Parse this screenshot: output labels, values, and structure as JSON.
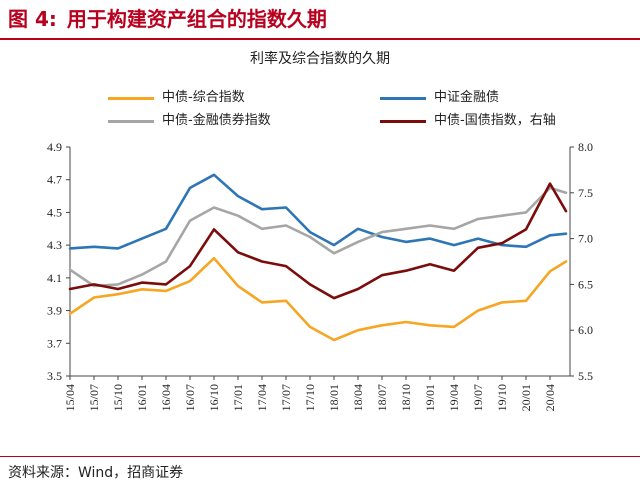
{
  "figure": {
    "number": "图  4:",
    "title": "用于构建资产组合的指数久期"
  },
  "source": "资料来源：Wind，招商证券",
  "colors": {
    "brand": "#b8001f",
    "orange": "#f5a623",
    "blue": "#2e75b6",
    "gray": "#a6a6a6",
    "darkred": "#7b0c0c"
  },
  "chart_data": {
    "type": "line",
    "title": "利率及综合指数的久期",
    "left_axis": {
      "range": [
        3.5,
        4.9
      ],
      "ticks": [
        "3.5",
        "3.7",
        "3.9",
        "4.1",
        "4.3",
        "4.5",
        "4.7",
        "4.9"
      ]
    },
    "right_axis": {
      "range": [
        5.5,
        8.0
      ],
      "ticks": [
        "5.5",
        "6.0",
        "6.5",
        "7.0",
        "7.5",
        "8.0"
      ]
    },
    "x_ticks": [
      "15/04",
      "15/07",
      "15/10",
      "16/01",
      "16/04",
      "16/07",
      "16/10",
      "17/01",
      "17/04",
      "17/07",
      "17/10",
      "18/01",
      "18/04",
      "18/07",
      "18/10",
      "19/01",
      "19/04",
      "19/07",
      "19/10",
      "20/01",
      "20/04"
    ],
    "grid": false,
    "legend_position": "top",
    "series": [
      {
        "name": "中债-综合指数",
        "axis": "left",
        "color": "#f5a623",
        "x": [
          "15/04",
          "15/07",
          "15/10",
          "16/01",
          "16/04",
          "16/07",
          "16/10",
          "17/01",
          "17/04",
          "17/07",
          "17/10",
          "18/01",
          "18/04",
          "18/07",
          "18/10",
          "19/01",
          "19/04",
          "19/07",
          "19/10",
          "20/01",
          "20/04",
          "20/06"
        ],
        "y": [
          3.88,
          3.98,
          4.0,
          4.03,
          4.02,
          4.08,
          4.22,
          4.05,
          3.95,
          3.96,
          3.8,
          3.72,
          3.78,
          3.81,
          3.83,
          3.81,
          3.8,
          3.9,
          3.95,
          3.96,
          4.14,
          4.2
        ]
      },
      {
        "name": "中证金融债",
        "axis": "left",
        "color": "#2e75b6",
        "x": [
          "15/04",
          "15/07",
          "15/10",
          "16/01",
          "16/04",
          "16/07",
          "16/10",
          "17/01",
          "17/04",
          "17/07",
          "17/10",
          "18/01",
          "18/04",
          "18/07",
          "18/10",
          "19/01",
          "19/04",
          "19/07",
          "19/10",
          "20/01",
          "20/04",
          "20/06"
        ],
        "y": [
          4.28,
          4.29,
          4.28,
          4.34,
          4.4,
          4.65,
          4.73,
          4.6,
          4.52,
          4.53,
          4.38,
          4.3,
          4.4,
          4.35,
          4.32,
          4.34,
          4.3,
          4.34,
          4.3,
          4.29,
          4.36,
          4.37
        ]
      },
      {
        "name": "中债-金融债券指数",
        "axis": "left",
        "color": "#a6a6a6",
        "x": [
          "15/04",
          "15/07",
          "15/10",
          "16/01",
          "16/04",
          "16/07",
          "16/10",
          "17/01",
          "17/04",
          "17/07",
          "17/10",
          "18/01",
          "18/04",
          "18/07",
          "18/10",
          "19/01",
          "19/04",
          "19/07",
          "19/10",
          "20/01",
          "20/04",
          "20/06"
        ],
        "y": [
          4.15,
          4.05,
          4.06,
          4.12,
          4.2,
          4.45,
          4.53,
          4.48,
          4.4,
          4.42,
          4.35,
          4.25,
          4.32,
          4.38,
          4.4,
          4.42,
          4.4,
          4.46,
          4.48,
          4.5,
          4.65,
          4.62
        ]
      },
      {
        "name": "中债-国债指数，右轴",
        "axis": "right",
        "color": "#7b0c0c",
        "x": [
          "15/04",
          "15/07",
          "15/10",
          "16/01",
          "16/04",
          "16/07",
          "16/10",
          "17/01",
          "17/04",
          "17/07",
          "17/10",
          "18/01",
          "18/04",
          "18/07",
          "18/10",
          "19/01",
          "19/04",
          "19/07",
          "19/10",
          "20/01",
          "20/04",
          "20/06"
        ],
        "y": [
          6.45,
          6.5,
          6.45,
          6.52,
          6.5,
          6.7,
          7.1,
          6.85,
          6.75,
          6.7,
          6.5,
          6.35,
          6.45,
          6.6,
          6.65,
          6.72,
          6.65,
          6.9,
          6.95,
          7.1,
          7.6,
          7.3
        ]
      }
    ]
  }
}
